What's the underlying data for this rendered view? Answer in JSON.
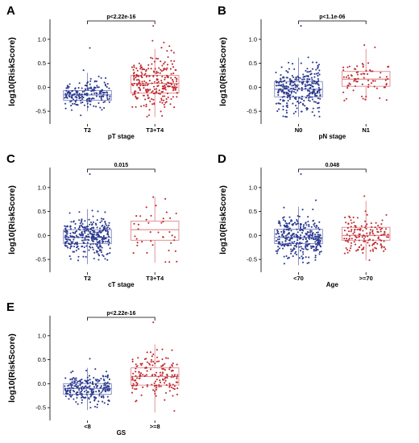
{
  "colors": {
    "group1": "#2b3a8f",
    "group2": "#c0272d",
    "box1_stroke": "#7f86c0",
    "box2_stroke": "#e0888b"
  },
  "chart_data": [
    {
      "type": "box",
      "panel": "A",
      "ylabel": "log10(RiskScore)",
      "xlabel": "pT stage",
      "categories": [
        "T2",
        "T3+T4"
      ],
      "yticks": [
        -0.5,
        0.0,
        0.5,
        1.0
      ],
      "ytick_labels": [
        "-0.5",
        "0.0",
        "0.5",
        "1.0"
      ],
      "ylim": [
        -0.7,
        1.35
      ],
      "p_value": "p<2.22e-16",
      "groups": [
        {
          "name": "T2",
          "n": 190,
          "q1": -0.27,
          "median": -0.16,
          "q3": -0.07,
          "whisker_low": -0.5,
          "whisker_high": 0.3,
          "min": -0.62,
          "max": 0.82
        },
        {
          "name": "T3+T4",
          "n": 260,
          "q1": -0.12,
          "median": 0.08,
          "q3": 0.25,
          "whisker_low": -0.62,
          "whisker_high": 0.8,
          "min": -0.62,
          "max": 1.28
        }
      ]
    },
    {
      "type": "box",
      "panel": "B",
      "ylabel": "log10(RiskScore)",
      "xlabel": "pN stage",
      "categories": [
        "N0",
        "N1"
      ],
      "yticks": [
        -0.5,
        0.0,
        0.5,
        1.0
      ],
      "ytick_labels": [
        "-0.5",
        "0.0",
        "0.5",
        "1.0"
      ],
      "ylim": [
        -0.7,
        1.35
      ],
      "p_value": "p<1.1e-06",
      "groups": [
        {
          "name": "N0",
          "n": 320,
          "q1": -0.2,
          "median": -0.04,
          "q3": 0.12,
          "whisker_low": -0.62,
          "whisker_high": 0.62,
          "min": -0.62,
          "max": 1.28
        },
        {
          "name": "N1",
          "n": 75,
          "q1": 0.02,
          "median": 0.17,
          "q3": 0.33,
          "whisker_low": -0.28,
          "whisker_high": 0.8,
          "min": -0.28,
          "max": 0.88
        }
      ]
    },
    {
      "type": "box",
      "panel": "C",
      "ylabel": "log10(RiskScore)",
      "xlabel": "cT stage",
      "categories": [
        "T2",
        "T3+T4"
      ],
      "yticks": [
        -0.5,
        0.0,
        0.5,
        1.0
      ],
      "ytick_labels": [
        "-0.5",
        "0.0",
        "0.5",
        "1.0"
      ],
      "ylim": [
        -0.7,
        1.35
      ],
      "p_value": "0.015",
      "groups": [
        {
          "name": "T2",
          "n": 330,
          "q1": -0.17,
          "median": -0.04,
          "q3": 0.12,
          "whisker_low": -0.6,
          "whisker_high": 0.55,
          "min": -0.6,
          "max": 1.28
        },
        {
          "name": "T3+T4",
          "n": 40,
          "q1": -0.1,
          "median": 0.12,
          "q3": 0.3,
          "whisker_low": -0.57,
          "whisker_high": 0.8,
          "min": -0.57,
          "max": 0.8
        }
      ]
    },
    {
      "type": "box",
      "panel": "D",
      "ylabel": "log10(RiskScore)",
      "xlabel": "Age",
      "categories": [
        "<70",
        ">=70"
      ],
      "yticks": [
        -0.5,
        0.0,
        0.5,
        1.0
      ],
      "ytick_labels": [
        "-0.5",
        "0.0",
        "0.5",
        "1.0"
      ],
      "ylim": [
        -0.7,
        1.35
      ],
      "p_value": "0.048",
      "groups": [
        {
          "name": "<70",
          "n": 330,
          "q1": -0.17,
          "median": -0.04,
          "q3": 0.13,
          "whisker_low": -0.62,
          "whisker_high": 0.6,
          "min": -0.62,
          "max": 1.28
        },
        {
          "name": ">=70",
          "n": 150,
          "q1": -0.1,
          "median": 0.0,
          "q3": 0.17,
          "whisker_low": -0.52,
          "whisker_high": 0.72,
          "min": -0.55,
          "max": 0.82
        }
      ]
    },
    {
      "type": "box",
      "panel": "E",
      "ylabel": "log10(RiskScore)",
      "xlabel": "GS",
      "categories": [
        "<8",
        ">=8"
      ],
      "yticks": [
        -0.5,
        0.0,
        0.5,
        1.0
      ],
      "ytick_labels": [
        "-0.5",
        "0.0",
        "0.5",
        "1.0"
      ],
      "ylim": [
        -0.7,
        1.35
      ],
      "p_value": "p<2.22e-16",
      "groups": [
        {
          "name": "<8",
          "n": 250,
          "q1": -0.22,
          "median": -0.1,
          "q3": 0.0,
          "whisker_low": -0.55,
          "whisker_high": 0.33,
          "min": -0.62,
          "max": 0.52
        },
        {
          "name": ">=8",
          "n": 160,
          "q1": -0.03,
          "median": 0.15,
          "q3": 0.33,
          "whisker_low": -0.6,
          "whisker_high": 0.82,
          "min": -0.6,
          "max": 1.28
        }
      ]
    }
  ]
}
